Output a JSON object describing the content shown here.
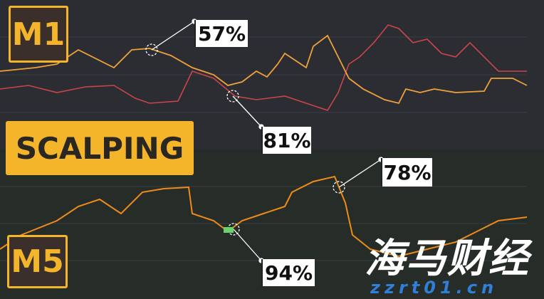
{
  "labels": {
    "m1": "M1",
    "scalping": "SCALPING",
    "m5": "M5"
  },
  "callouts": [
    "57%",
    "81%",
    "78%",
    "94%"
  ],
  "watermark": {
    "title": "海马财经",
    "url": "zzrt01.cn"
  }
}
